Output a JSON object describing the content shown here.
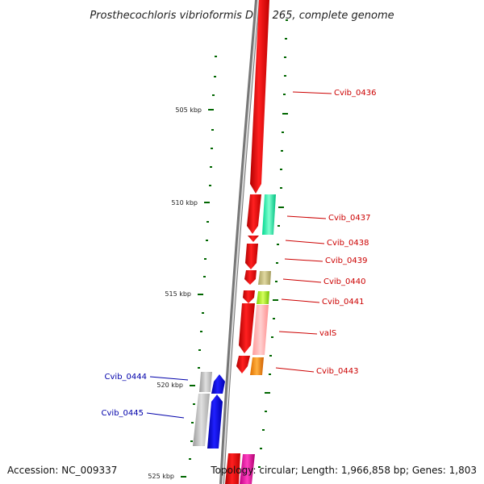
{
  "title": "Prosthecochloris vibrioformis DSM 265, complete genome",
  "footer": {
    "accession": "Accession: NC_009337",
    "topology": "Topology: circular; Length: 1,966,858 bp; Genes: 1,803"
  },
  "ruler": {
    "labels": [
      "505 kbp",
      "510 kbp",
      "515 kbp",
      "520 kbp",
      "525 kbp"
    ]
  },
  "genes_forward": {
    "labels": [
      "Cvib_0436",
      "Cvib_0437",
      "Cvib_0438",
      "Cvib_0439",
      "Cvib_0440",
      "Cvib_0441",
      "valS",
      "Cvib_0443"
    ],
    "color": "#cc0000"
  },
  "genes_reverse": {
    "labels": [
      "Cvib_0444",
      "Cvib_0445"
    ],
    "color": "#0000aa"
  },
  "colors": {
    "cds_forward": "#ff0000",
    "cds_reverse": "#0000ff",
    "backbone": "#888888",
    "tick": "#006600"
  }
}
